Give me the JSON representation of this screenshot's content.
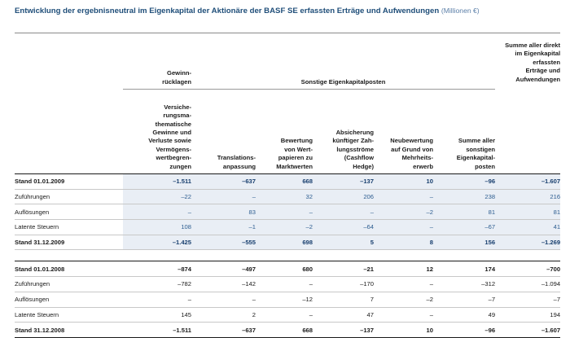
{
  "title": {
    "main": "Entwicklung der ergebnisneutral im Eigenkapital der Aktionäre der BASF SE erfassten Erträge und Aufwendungen",
    "unit": "(Millionen €)"
  },
  "header": {
    "gewinnruecklagen": "Gewinn-\nrücklagen",
    "sonstige": "Sonstige Eigenkapitalposten",
    "summe_direkt": "Summe aller direkt\nim Eigenkapital\nerfassten\nErträge und\nAufwendungen",
    "columns": [
      "Versiche-\nrungsma-\nthematische\nGewinne und\nVerluste sowie\nVermögens-\nwertbegren-\nzungen",
      "Translations-\nanpassung",
      "Bewertung\nvon Wert-\npapieren zu\nMarktwerten",
      "Absicherung\nkünftiger Zah-\nlungsströme\n(Cashflow\nHedge)",
      "Neubewertung\nauf Grund von\nMehrheits-\nerwerb",
      "Summe aller\nsonstigen\nEigenkapital-\nposten",
      ""
    ]
  },
  "rows_2009": [
    {
      "label": "Stand 01.01.2009",
      "values": [
        "–1.511",
        "–637",
        "668",
        "–137",
        "10",
        "–96",
        "–1.607"
      ]
    },
    {
      "label": "Zuführungen",
      "values": [
        "–22",
        "–",
        "32",
        "206",
        "–",
        "238",
        "216"
      ]
    },
    {
      "label": "Auflösungen",
      "values": [
        "–",
        "83",
        "–",
        "–",
        "–2",
        "81",
        "81"
      ]
    },
    {
      "label": "Latente Steuern",
      "values": [
        "108",
        "–1",
        "–2",
        "–64",
        "–",
        "–67",
        "41"
      ]
    },
    {
      "label": "Stand 31.12.2009",
      "values": [
        "–1.425",
        "–555",
        "698",
        "5",
        "8",
        "156",
        "–1.269"
      ]
    }
  ],
  "rows_2008": [
    {
      "label": "Stand 01.01.2008",
      "values": [
        "–874",
        "–497",
        "680",
        "–21",
        "12",
        "174",
        "–700"
      ]
    },
    {
      "label": "Zuführungen",
      "values": [
        "–782",
        "–142",
        "–",
        "–170",
        "–",
        "–312",
        "–1.094"
      ]
    },
    {
      "label": "Auflösungen",
      "values": [
        "–",
        "–",
        "–12",
        "7",
        "–2",
        "–7",
        "–7"
      ]
    },
    {
      "label": "Latente Steuern",
      "values": [
        "145",
        "2",
        "–",
        "47",
        "–",
        "49",
        "194"
      ]
    },
    {
      "label": "Stand 31.12.2008",
      "values": [
        "–1.511",
        "–637",
        "668",
        "–137",
        "10",
        "–96",
        "–1.607"
      ]
    }
  ],
  "colors": {
    "title": "#1f4e79",
    "highlight_2009": "#e9eef5",
    "value_2009": "#2e5e91"
  }
}
